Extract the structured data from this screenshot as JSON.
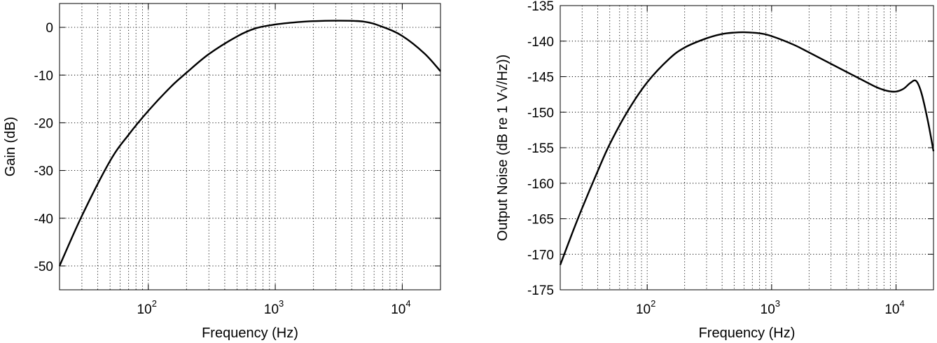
{
  "chart_data": [
    {
      "type": "line",
      "title": "",
      "xlabel": "Frequency (Hz)",
      "ylabel": "Gain (dB)",
      "xscale": "log",
      "xlim": [
        20,
        20000
      ],
      "ylim": [
        -55,
        5
      ],
      "xticks": [
        {
          "base": "10",
          "exp": "2",
          "value": 100
        },
        {
          "base": "10",
          "exp": "3",
          "value": 1000
        },
        {
          "base": "10",
          "exp": "4",
          "value": 10000
        }
      ],
      "yticks": [
        {
          "label": "0",
          "value": 0
        },
        {
          "label": "-10",
          "value": -10
        },
        {
          "label": "-20",
          "value": -20
        },
        {
          "label": "-30",
          "value": -30
        },
        {
          "label": "-40",
          "value": -40
        },
        {
          "label": "-50",
          "value": -50
        }
      ],
      "grid": true,
      "series": [
        {
          "color": "#000000",
          "x": [
            20,
            30,
            50,
            70,
            100,
            150,
            200,
            300,
            500,
            700,
            1000,
            1500,
            2000,
            3000,
            5000,
            7000,
            10000,
            15000,
            20000
          ],
          "y": [
            -50,
            -39.5,
            -28,
            -22.5,
            -17.5,
            -12.5,
            -9.5,
            -5.6,
            -1.9,
            -0.2,
            0.6,
            1.1,
            1.3,
            1.4,
            1.2,
            0.1,
            -1.8,
            -5.5,
            -9.2
          ]
        }
      ]
    },
    {
      "type": "line",
      "title": "",
      "xlabel": "Frequency (Hz)",
      "ylabel": "Output Noise (dB re 1 V√/Hz))",
      "xscale": "log",
      "xlim": [
        20,
        20000
      ],
      "ylim": [
        -175,
        -135
      ],
      "xticks": [
        {
          "base": "10",
          "exp": "2",
          "value": 100
        },
        {
          "base": "10",
          "exp": "3",
          "value": 1000
        },
        {
          "base": "10",
          "exp": "4",
          "value": 10000
        }
      ],
      "yticks": [
        {
          "label": "-135",
          "value": -135
        },
        {
          "label": "-140",
          "value": -140
        },
        {
          "label": "-145",
          "value": -145
        },
        {
          "label": "-150",
          "value": -150
        },
        {
          "label": "-155",
          "value": -155
        },
        {
          "label": "-160",
          "value": -160
        },
        {
          "label": "-165",
          "value": -165
        },
        {
          "label": "-170",
          "value": -170
        },
        {
          "label": "-175",
          "value": -175
        }
      ],
      "grid": true,
      "series": [
        {
          "color": "#000000",
          "x": [
            20,
            25,
            30,
            40,
            50,
            70,
            100,
            150,
            200,
            300,
            400,
            500,
            600,
            800,
            1000,
            1500,
            2000,
            3000,
            5000,
            7000,
            8500,
            10000,
            11500,
            13000,
            14500,
            16000,
            18000,
            20000
          ],
          "y": [
            -171.5,
            -167,
            -163.5,
            -158.3,
            -154.5,
            -149.8,
            -145.8,
            -142.5,
            -140.9,
            -139.6,
            -139.0,
            -138.8,
            -138.75,
            -138.9,
            -139.3,
            -140.5,
            -141.6,
            -143.2,
            -145.2,
            -146.5,
            -147.0,
            -147.1,
            -146.7,
            -145.9,
            -145.6,
            -147.3,
            -151.2,
            -155.5
          ]
        }
      ]
    }
  ]
}
